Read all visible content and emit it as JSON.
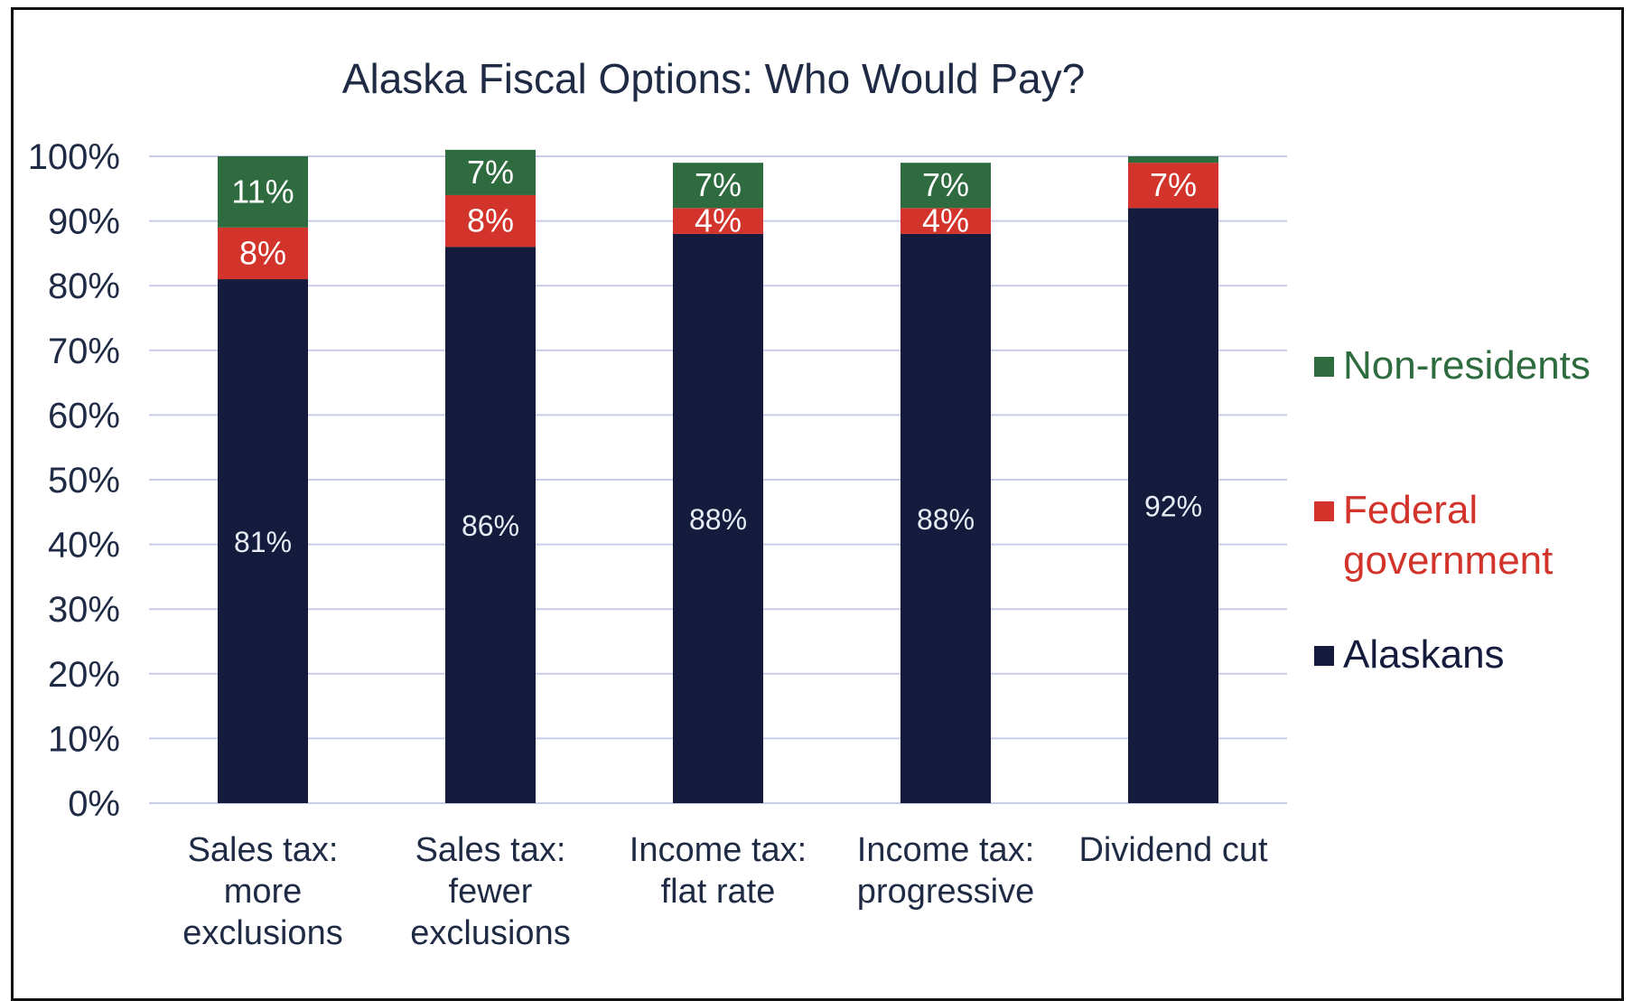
{
  "chart_data": {
    "type": "bar",
    "stacked": true,
    "title": "Alaska Fiscal Options:  Who Would Pay?",
    "categories": [
      [
        "Sales tax:",
        "more",
        "exclusions"
      ],
      [
        "Sales tax:",
        "fewer",
        "exclusions"
      ],
      [
        "Income tax:",
        "flat rate"
      ],
      [
        "Income tax:",
        "progressive"
      ],
      [
        "Dividend cut"
      ]
    ],
    "series": [
      {
        "name": "Alaskans",
        "color": "#141b3d",
        "values": [
          81,
          86,
          88,
          88,
          92
        ],
        "labels": [
          "81%",
          "86%",
          "88%",
          "88%",
          "92%"
        ]
      },
      {
        "name": "Federal government",
        "color": "#d2342b",
        "values": [
          8,
          8,
          4,
          4,
          7
        ],
        "labels": [
          "8%",
          "8%",
          "4%",
          "4%",
          "7%"
        ]
      },
      {
        "name": "Non-residents",
        "color": "#2e6b3e",
        "values": [
          11,
          7,
          7,
          7,
          1
        ],
        "labels": [
          "11%",
          "7%",
          "7%",
          "7%",
          ""
        ]
      }
    ],
    "legend": {
      "position": "right",
      "entries": [
        {
          "lines": [
            "Non-residents"
          ],
          "color": "#2e6b3e"
        },
        {
          "lines": [
            "Federal",
            "government"
          ],
          "color": "#d2342b"
        },
        {
          "lines": [
            "Alaskans"
          ],
          "color": "#141b3d"
        }
      ]
    },
    "yticks": [
      "0%",
      "10%",
      "20%",
      "30%",
      "40%",
      "50%",
      "60%",
      "70%",
      "80%",
      "90%",
      "100%"
    ],
    "ylim": [
      0,
      100
    ],
    "grid": true
  }
}
